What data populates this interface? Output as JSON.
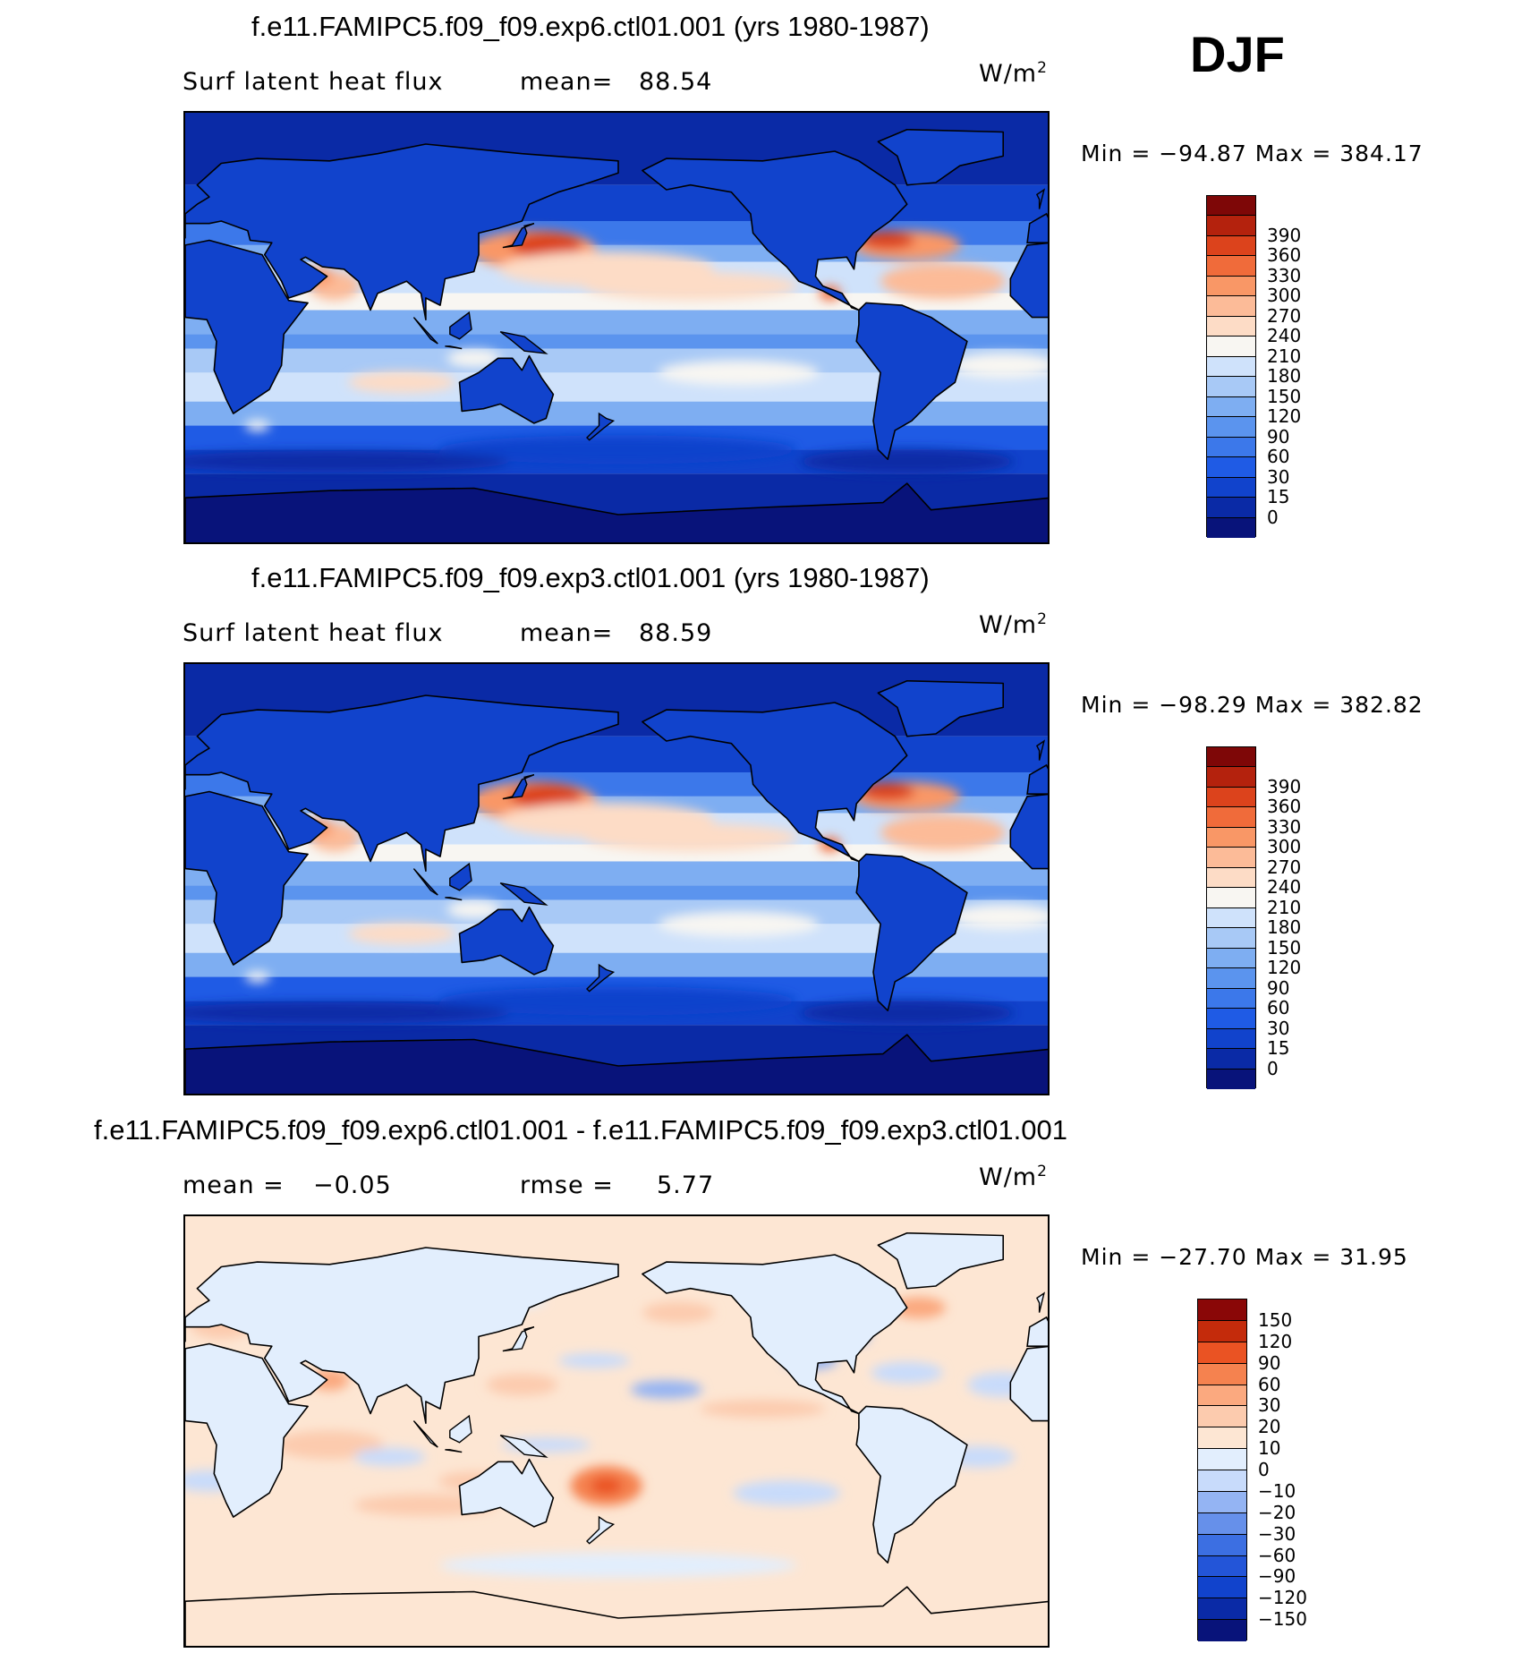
{
  "season": "DJF",
  "palettes": {
    "abs": [
      "#08137a",
      "#0a2aa6",
      "#1143cc",
      "#1f5be5",
      "#3c78ea",
      "#5b94ee",
      "#7eaef2",
      "#a8c9f6",
      "#cfe2fb",
      "#f8f6f2",
      "#fddcc6",
      "#fcbb98",
      "#f99766",
      "#f06b3a",
      "#dc431c",
      "#b4220d",
      "#7e0707"
    ],
    "diff": [
      "#08137a",
      "#0a2aa6",
      "#1143cc",
      "#2355d8",
      "#3c6fe2",
      "#6690ea",
      "#94b4f3",
      "#c8dbfb",
      "#e2eefd",
      "#fde6d3",
      "#fccbae",
      "#fba97f",
      "#f5824f",
      "#ea5323",
      "#c42b0b",
      "#8a0707"
    ]
  },
  "panels": [
    {
      "title": "f.e11.FAMIPC5.f09_f09.exp6.ctl01.001 (yrs 1980-1987)",
      "left_label": "Surf latent heat flux",
      "stat1_label": "mean=",
      "stat1_value": "88.54",
      "stat2_label": "",
      "stat2_value": "",
      "unit": "W/m",
      "unit_sup": "2",
      "min_label": "Min",
      "min_value": "−94.87",
      "max_label": "Max",
      "max_value": "384.17"
    },
    {
      "title": "f.e11.FAMIPC5.f09_f09.exp3.ctl01.001 (yrs 1980-1987)",
      "left_label": "Surf latent heat flux",
      "stat1_label": "mean=",
      "stat1_value": "88.59",
      "stat2_label": "",
      "stat2_value": "",
      "unit": "W/m",
      "unit_sup": "2",
      "min_label": "Min",
      "min_value": "−98.29",
      "max_label": "Max",
      "max_value": "382.82"
    },
    {
      "title": "f.e11.FAMIPC5.f09_f09.exp6.ctl01.001 - f.e11.FAMIPC5.f09_f09.exp3.ctl01.001",
      "left_label": "mean =",
      "stat1_label": "",
      "stat1_value": "−0.05",
      "stat2_label": "rmse =",
      "stat2_value": "5.77",
      "unit": "W/m",
      "unit_sup": "2",
      "min_label": "Min",
      "min_value": "−27.70",
      "max_label": "Max",
      "max_value": "31.95"
    }
  ],
  "chart_data": [
    {
      "type": "heatmap",
      "title": "f.e11.FAMIPC5.f09_f09.exp6.ctl01.001 (yrs 1980-1987)",
      "variable": "Surf latent heat flux",
      "units": "W/m2",
      "mean": 88.54,
      "min": -94.87,
      "max": 384.17,
      "colorbar_levels": [
        390,
        360,
        330,
        300,
        270,
        240,
        210,
        180,
        150,
        120,
        90,
        60,
        30,
        15,
        0
      ]
    },
    {
      "type": "heatmap",
      "title": "f.e11.FAMIPC5.f09_f09.exp3.ctl01.001 (yrs 1980-1987)",
      "variable": "Surf latent heat flux",
      "units": "W/m2",
      "mean": 88.59,
      "min": -98.29,
      "max": 382.82,
      "colorbar_levels": [
        390,
        360,
        330,
        300,
        270,
        240,
        210,
        180,
        150,
        120,
        90,
        60,
        30,
        15,
        0
      ]
    },
    {
      "type": "heatmap",
      "title": "f.e11.FAMIPC5.f09_f09.exp6.ctl01.001 - f.e11.FAMIPC5.f09_f09.exp3.ctl01.001",
      "units": "W/m2",
      "mean": -0.05,
      "rmse": 5.77,
      "min": -27.7,
      "max": 31.95,
      "colorbar_levels": [
        150,
        120,
        90,
        60,
        30,
        20,
        10,
        0,
        -10,
        -20,
        -30,
        -60,
        -90,
        -120,
        -150
      ]
    }
  ],
  "colorbar_tick_labels": {
    "abs": [
      "390",
      "360",
      "330",
      "300",
      "270",
      "240",
      "210",
      "180",
      "150",
      "120",
      "90",
      "60",
      "30",
      "15",
      "0"
    ],
    "diff": [
      "150",
      "120",
      "90",
      "60",
      "30",
      "20",
      "10",
      "0",
      "−10",
      "−20",
      "−30",
      "−60",
      "−90",
      "−120",
      "−150"
    ]
  }
}
